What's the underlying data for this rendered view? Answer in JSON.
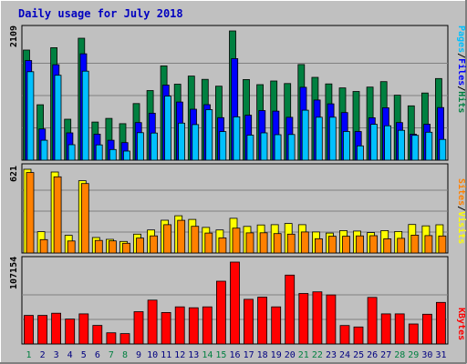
{
  "title": "Daily usage for July 2018",
  "colors": {
    "background": "#c0c0c0",
    "border_dark": "#808080",
    "plot_bg": "#c0c0c0",
    "title": "#0000c0",
    "hits": "#008040",
    "files": "#0000ff",
    "pages": "#00c0ff",
    "visits": "#ffff00",
    "sites": "#ff8000",
    "kbytes": "#ff0000",
    "weekend": "#008040",
    "weekday": "#000080"
  },
  "legend": {
    "pages": "Pages",
    "files": "Files",
    "hits": "Hits",
    "sites": "Sites",
    "visits": "Visits",
    "kbytes": "KBytes",
    "sep": "/"
  },
  "chart_data": [
    {
      "type": "bar",
      "panel": "top",
      "max_label": "2109",
      "ylim": [
        0,
        2109
      ],
      "categories": [
        "1",
        "2",
        "3",
        "4",
        "5",
        "6",
        "7",
        "8",
        "9",
        "10",
        "11",
        "12",
        "13",
        "14",
        "15",
        "16",
        "17",
        "18",
        "19",
        "20",
        "21",
        "22",
        "23",
        "24",
        "25",
        "26",
        "27",
        "28",
        "29",
        "30",
        "31"
      ],
      "weekend_days": [
        "1",
        "7",
        "8",
        "14",
        "15",
        "21",
        "22",
        "28",
        "29"
      ],
      "series": [
        {
          "name": "Hits",
          "values": [
            1797,
            904,
            1835,
            668,
            1990,
            622,
            681,
            595,
            924,
            1136,
            1539,
            1240,
            1372,
            1319,
            1208,
            2109,
            1316,
            1232,
            1292,
            1250,
            1561,
            1352,
            1244,
            1179,
            1121,
            1192,
            1282,
            1060,
            887,
            1096,
            1332
          ]
        },
        {
          "name": "Files",
          "values": [
            1626,
            509,
            1558,
            446,
            1736,
            425,
            326,
            286,
            613,
            767,
            1225,
            949,
            831,
            906,
            693,
            1658,
            734,
            810,
            801,
            699,
            1189,
            982,
            919,
            777,
            468,
            692,
            856,
            613,
            423,
            586,
            858
          ]
        },
        {
          "name": "Pages",
          "values": [
            1443,
            326,
            1386,
            253,
            1452,
            249,
            174,
            148,
            449,
            443,
            1045,
            605,
            580,
            824,
            466,
            707,
            408,
            446,
            416,
            419,
            816,
            701,
            701,
            468,
            233,
            585,
            562,
            487,
            405,
            456,
            339
          ]
        }
      ]
    },
    {
      "type": "bar",
      "panel": "middle",
      "max_label": "621",
      "ylim": [
        0,
        621
      ],
      "categories": [
        "1",
        "2",
        "3",
        "4",
        "5",
        "6",
        "7",
        "8",
        "9",
        "10",
        "11",
        "12",
        "13",
        "14",
        "15",
        "16",
        "17",
        "18",
        "19",
        "20",
        "21",
        "22",
        "23",
        "24",
        "25",
        "26",
        "27",
        "28",
        "29",
        "30",
        "31"
      ],
      "series": [
        {
          "name": "Visits",
          "values": [
            621,
            158,
            601,
            131,
            536,
            115,
            101,
            86,
            140,
            171,
            243,
            276,
            249,
            190,
            171,
            257,
            197,
            208,
            210,
            219,
            210,
            156,
            148,
            166,
            163,
            151,
            166,
            159,
            211,
            201,
            209
          ]
        },
        {
          "name": "Sites",
          "values": [
            597,
            99,
            565,
            89,
            515,
            93,
            90,
            72,
            111,
            127,
            210,
            242,
            198,
            148,
            112,
            184,
            149,
            150,
            144,
            140,
            156,
            105,
            124,
            124,
            127,
            128,
            105,
            109,
            132,
            129,
            126
          ]
        }
      ]
    },
    {
      "type": "bar",
      "panel": "bottom",
      "max_label": "107154",
      "ylim": [
        0,
        107154
      ],
      "categories": [
        "1",
        "2",
        "3",
        "4",
        "5",
        "6",
        "7",
        "8",
        "9",
        "10",
        "11",
        "12",
        "13",
        "14",
        "15",
        "16",
        "17",
        "18",
        "19",
        "20",
        "21",
        "22",
        "23",
        "24",
        "25",
        "26",
        "27",
        "28",
        "29",
        "30",
        "31"
      ],
      "series": [
        {
          "name": "KBytes",
          "values": [
            37400,
            37400,
            40300,
            32600,
            39400,
            24300,
            14600,
            13600,
            42300,
            57400,
            41200,
            48600,
            47400,
            48600,
            82100,
            107154,
            58400,
            61300,
            48600,
            90100,
            66100,
            68200,
            64200,
            24200,
            22300,
            60900,
            39400,
            39400,
            26200,
            38900,
            54400
          ]
        }
      ]
    }
  ]
}
